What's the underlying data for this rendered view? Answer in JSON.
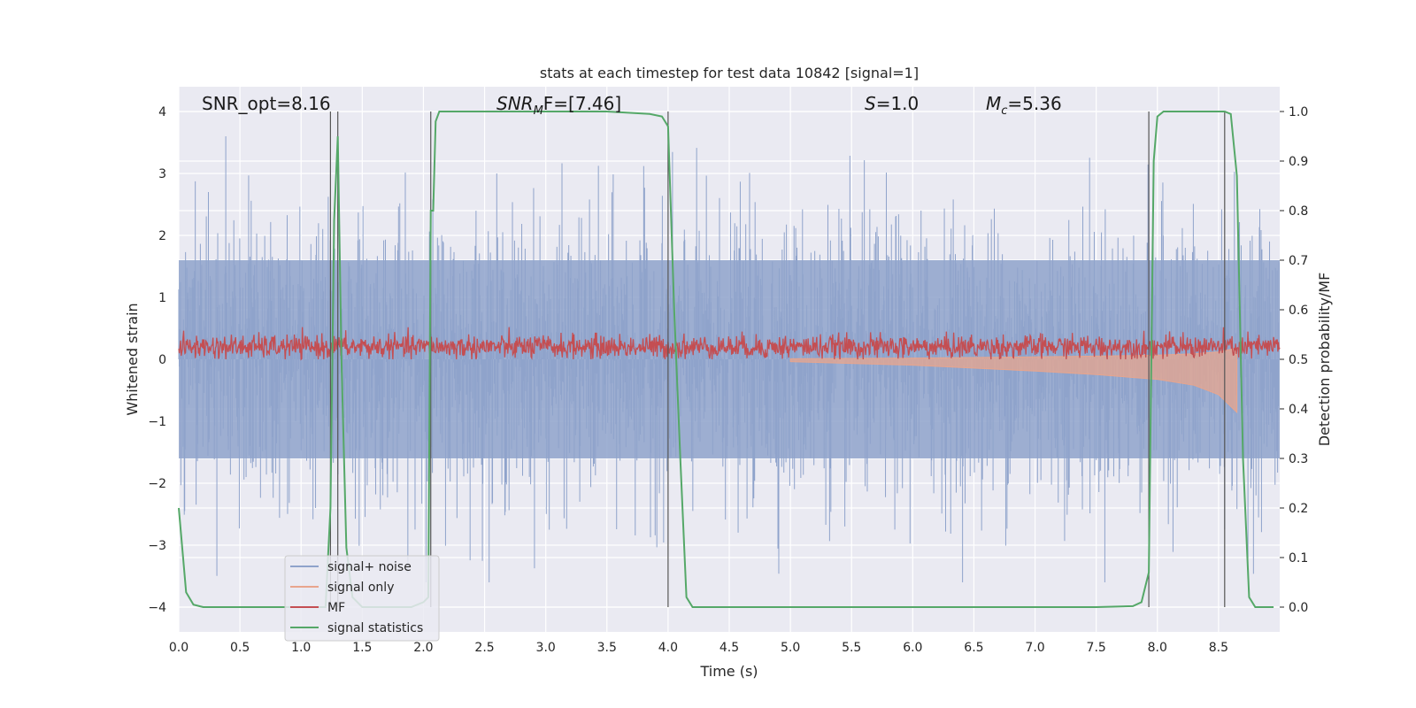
{
  "chart_data": {
    "type": "line",
    "title": "stats at each timestep for test data 10842 [signal=1]",
    "xlabel": "Time (s)",
    "ylabel_left": "Whitened strain",
    "ylabel_right": "Detection probability/MF",
    "xlim": [
      0.0,
      9.0
    ],
    "ylim_left": [
      -4.4,
      4.4
    ],
    "ylim_right": [
      -0.05,
      1.05
    ],
    "x_ticks": [
      "0.0",
      "0.5",
      "1.0",
      "1.5",
      "2.0",
      "2.5",
      "3.0",
      "3.5",
      "4.0",
      "4.5",
      "5.0",
      "5.5",
      "6.0",
      "6.5",
      "7.0",
      "7.5",
      "8.0",
      "8.5"
    ],
    "y_left_ticks": [
      "−4",
      "−3",
      "−2",
      "−1",
      "0",
      "1",
      "2",
      "3",
      "4"
    ],
    "y_right_ticks": [
      "0.0",
      "0.1",
      "0.2",
      "0.3",
      "0.4",
      "0.5",
      "0.6",
      "0.7",
      "0.8",
      "0.9",
      "1.0"
    ],
    "grid": true,
    "legend_placement": "lower-left",
    "annotations": {
      "snr_opt": "SNR_opt=8.16",
      "snr_mf_main": "SNR",
      "snr_mf_sub": "M",
      "snr_mf_rest": "F=[7.46]",
      "s_main": "S",
      "s_rest": "=1.0",
      "mc_main": "M",
      "mc_sub": "c",
      "mc_rest": "=5.36"
    },
    "series": [
      {
        "name": "signal+ noise",
        "color": "#8fa3cb",
        "axis": "left",
        "description_values": "noise band approx ±1.6, spikes to ±3.6"
      },
      {
        "name": "signal only",
        "color": "#e8a58d",
        "axis": "left",
        "chirp_x": [
          5.0,
          6.0,
          7.0,
          7.5,
          8.0,
          8.3,
          8.5,
          8.65
        ],
        "chirp_amp": [
          0.02,
          0.05,
          0.1,
          0.13,
          0.17,
          0.22,
          0.3,
          0.45
        ]
      },
      {
        "name": "MF",
        "color": "#c44e52",
        "axis": "right",
        "band": [
          0.5,
          0.56
        ]
      },
      {
        "name": "signal statistics",
        "color": "#55a868",
        "axis": "right",
        "x": [
          0.0,
          0.06,
          0.12,
          0.2,
          0.35,
          1.0,
          1.2,
          1.24,
          1.27,
          1.3,
          1.33,
          1.37,
          1.42,
          1.5,
          1.9,
          2.0,
          2.04,
          2.06,
          2.08,
          2.1,
          2.13,
          2.2,
          3.0,
          3.5,
          3.85,
          3.95,
          4.0,
          4.05,
          4.1,
          4.15,
          4.2,
          4.35,
          5.0,
          6.0,
          7.5,
          7.8,
          7.87,
          7.93,
          7.97,
          8.0,
          8.05,
          8.1,
          8.3,
          8.5,
          8.55,
          8.6,
          8.65,
          8.7,
          8.75,
          8.8,
          8.95
        ],
        "y": [
          0.2,
          0.03,
          0.005,
          0.0,
          0.0,
          0.0,
          0.0,
          0.2,
          0.78,
          0.95,
          0.5,
          0.12,
          0.02,
          0.0,
          0.0,
          0.01,
          0.02,
          0.8,
          0.8,
          0.98,
          1.0,
          1.0,
          1.0,
          1.0,
          0.995,
          0.99,
          0.97,
          0.6,
          0.3,
          0.02,
          0.0,
          0.0,
          0.0,
          0.0,
          0.0,
          0.002,
          0.01,
          0.07,
          0.9,
          0.99,
          1.0,
          1.0,
          1.0,
          1.0,
          1.0,
          0.995,
          0.87,
          0.3,
          0.02,
          0.0,
          0.0
        ]
      }
    ],
    "vertical_lines_x": [
      1.24,
      1.3,
      2.06,
      4.0,
      7.93,
      8.55
    ]
  }
}
